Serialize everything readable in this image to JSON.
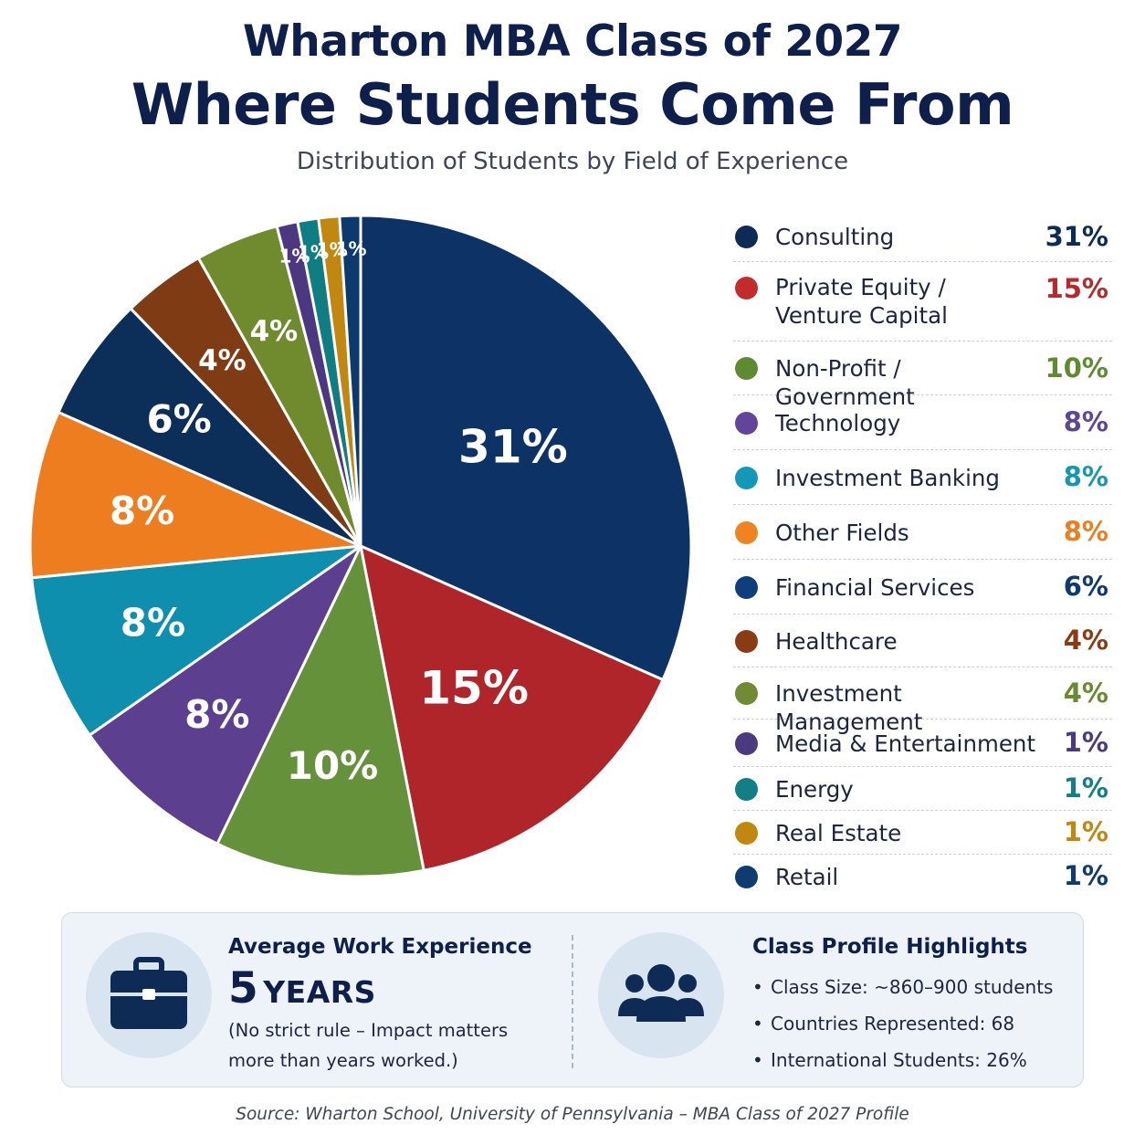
{
  "title_line1": "Wharton MBA Class of 2027",
  "title_line2": "Where Students Come From",
  "subtitle": "Distribution of Students by Field of Experience",
  "chart_data": {
    "type": "pie",
    "unit": "%",
    "slices": [
      {
        "name": "Consulting",
        "value": 31,
        "label": "31%",
        "color": "#0d3366"
      },
      {
        "name": "Private Equity / Venture Capital",
        "value": 15,
        "label": "15%",
        "color": "#b0252a"
      },
      {
        "name": "Non-Profit / Government",
        "value": 10,
        "label": "10%",
        "color": "#64913a"
      },
      {
        "name": "Technology",
        "value": 8,
        "label": "8%",
        "color": "#5d3f8f"
      },
      {
        "name": "Investment Banking",
        "value": 8,
        "label": "8%",
        "color": "#0f8fae"
      },
      {
        "name": "Other Fields",
        "value": 8,
        "label": "8%",
        "color": "#ee7d1f"
      },
      {
        "name": "Financial Services",
        "value": 6,
        "label": "6%",
        "color": "#0c2f5a"
      },
      {
        "name": "Healthcare",
        "value": 4,
        "label": "4%",
        "color": "#7f3c14"
      },
      {
        "name": "Investment Management",
        "value": 4,
        "label": "4%",
        "color": "#6f8b2e"
      },
      {
        "name": "Media & Entertainment",
        "value": 1,
        "label": "1%",
        "color": "#4c3781"
      },
      {
        "name": "Energy",
        "value": 1,
        "label": "1%",
        "color": "#0f7e83"
      },
      {
        "name": "Real Estate",
        "value": 1,
        "label": "1%",
        "color": "#c2870f"
      },
      {
        "name": "Retail",
        "value": 1,
        "label": "1%",
        "color": "#0c3a6e"
      }
    ]
  },
  "legend": [
    {
      "label": "Consulting",
      "value": "31%",
      "dot": "#0d2b55",
      "value_color": "#0d2b55"
    },
    {
      "label": "Private Equity /\nVenture Capital",
      "value": "15%",
      "dot": "#c42c2c",
      "value_color": "#b52a2a"
    },
    {
      "label": "Non-Profit / Government",
      "value": "10%",
      "dot": "#5e8a32",
      "value_color": "#5e8a32"
    },
    {
      "label": "Technology",
      "value": "8%",
      "dot": "#62449b",
      "value_color": "#5e4596"
    },
    {
      "label": "Investment Banking",
      "value": "8%",
      "dot": "#1399b8",
      "value_color": "#1696b2"
    },
    {
      "label": "Other Fields",
      "value": "8%",
      "dot": "#f0831f",
      "value_color": "#ec7e1e"
    },
    {
      "label": "Financial Services",
      "value": "6%",
      "dot": "#0d3f7f",
      "value_color": "#0e3a73"
    },
    {
      "label": "Healthcare",
      "value": "4%",
      "dot": "#8a3b12",
      "value_color": "#8a3b12"
    },
    {
      "label": "Investment Management",
      "value": "4%",
      "dot": "#708b34",
      "value_color": "#6a8a30"
    },
    {
      "label": "Media & Entertainment",
      "value": "1%",
      "dot": "#4b3a7d",
      "value_color": "#4b3a7d"
    },
    {
      "label": "Energy",
      "value": "1%",
      "dot": "#117f85",
      "value_color": "#117f85"
    },
    {
      "label": "Real Estate",
      "value": "1%",
      "dot": "#c1870e",
      "value_color": "#c1870e"
    },
    {
      "label": "Retail",
      "value": "1%",
      "dot": "#0e3c70",
      "value_color": "#0e3c70"
    }
  ],
  "work_experience": {
    "heading": "Average Work Experience",
    "number": "5",
    "unit": "YEARS",
    "note": "(No strict rule – Impact matters more than years worked.)",
    "icon": "briefcase-icon"
  },
  "class_profile": {
    "heading": "Class Profile Highlights",
    "items": [
      "Class Size:  ~860–900 students",
      "Countries Represented:  68",
      "International Students:  26%"
    ],
    "icon": "people-group-icon"
  },
  "source": "Source: Wharton School, University of Pennsylvania – MBA Class of 2027 Profile"
}
